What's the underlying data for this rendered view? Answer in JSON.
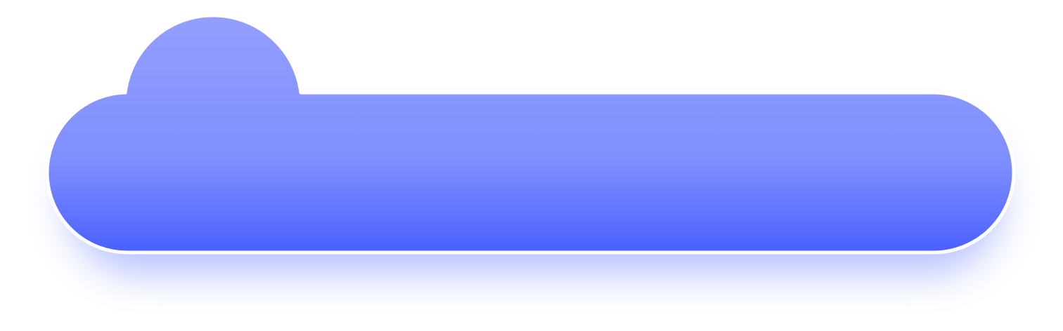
{
  "banner": {
    "colors": {
      "gradient_top": "#939FFD",
      "gradient_mid": "#7F8EFE",
      "gradient_bottom": "#4A60FF",
      "outline": "#FFFFFF",
      "shadow": "#5B75FF",
      "background": "#FFFFFF"
    }
  }
}
